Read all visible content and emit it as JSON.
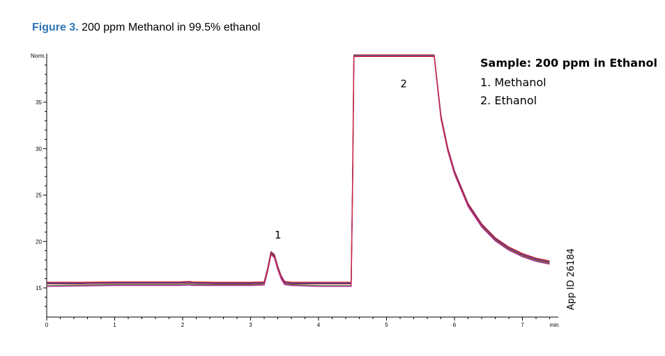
{
  "caption": {
    "label": "Figure 3.",
    "text": " 200 ppm Methanol in 99.5% ethanol"
  },
  "legend": {
    "title": "Sample:  200 ppm in Ethanol",
    "items": [
      "1. Methanol",
      "2. Ethanol"
    ]
  },
  "app_id": "App ID 26184",
  "colors": {
    "trace_colors": [
      "#e0262b",
      "#2b3fa8",
      "#3a8a3a",
      "#b42a9a",
      "#d4282e"
    ]
  },
  "chart_data": {
    "type": "line",
    "title": "Figure 3. 200 ppm Methanol in 99.5% ethanol",
    "xlabel": "min",
    "ylabel": "Norm.",
    "xlim": [
      0,
      7.6
    ],
    "ylim": [
      12.5,
      40
    ],
    "x_ticks": [
      0,
      1,
      2,
      3,
      4,
      5,
      6,
      7
    ],
    "y_ticks": [
      15,
      20,
      25,
      30,
      35
    ],
    "grid": false,
    "peak_labels": [
      {
        "label": "1",
        "x": 3.3,
        "y": 20.3
      },
      {
        "label": "2",
        "x": 5.15,
        "y": 36.6
      }
    ],
    "series": [
      {
        "x": [
          0,
          0.5,
          1,
          1.5,
          1.95,
          2.1,
          2.15,
          2.5,
          3.0,
          3.2,
          3.25,
          3.3,
          3.35,
          3.4,
          3.45,
          3.5,
          3.6,
          3.8,
          4.0,
          4.4,
          4.48,
          4.5,
          4.52,
          5.7,
          5.8,
          5.9,
          6.0,
          6.2,
          6.4,
          6.6,
          6.8,
          7.0,
          7.2,
          7.4
        ],
        "y": [
          15.5,
          15.5,
          15.55,
          15.55,
          15.55,
          15.6,
          15.55,
          15.5,
          15.5,
          15.55,
          17.0,
          18.8,
          18.5,
          17.2,
          16.2,
          15.6,
          15.5,
          15.5,
          15.5,
          15.5,
          15.5,
          26.0,
          40.0,
          40.0,
          33.5,
          30.0,
          27.5,
          24.0,
          21.8,
          20.3,
          19.3,
          18.6,
          18.1,
          17.8
        ]
      },
      {
        "x": [
          0,
          0.5,
          1,
          1.5,
          1.95,
          2.1,
          2.15,
          2.5,
          3.0,
          3.2,
          3.25,
          3.3,
          3.35,
          3.4,
          3.45,
          3.5,
          3.6,
          3.8,
          4.0,
          4.4,
          4.48,
          4.5,
          4.52,
          5.7,
          5.8,
          5.9,
          6.0,
          6.2,
          6.4,
          6.6,
          6.8,
          7.0,
          7.2,
          7.4
        ],
        "y": [
          15.2,
          15.25,
          15.3,
          15.3,
          15.3,
          15.35,
          15.3,
          15.3,
          15.3,
          15.35,
          16.8,
          18.6,
          18.3,
          17.0,
          16.0,
          15.4,
          15.3,
          15.25,
          15.2,
          15.2,
          15.2,
          26.0,
          40.0,
          40.0,
          33.3,
          29.8,
          27.3,
          23.8,
          21.6,
          20.1,
          19.1,
          18.4,
          17.9,
          17.6
        ]
      }
    ]
  }
}
